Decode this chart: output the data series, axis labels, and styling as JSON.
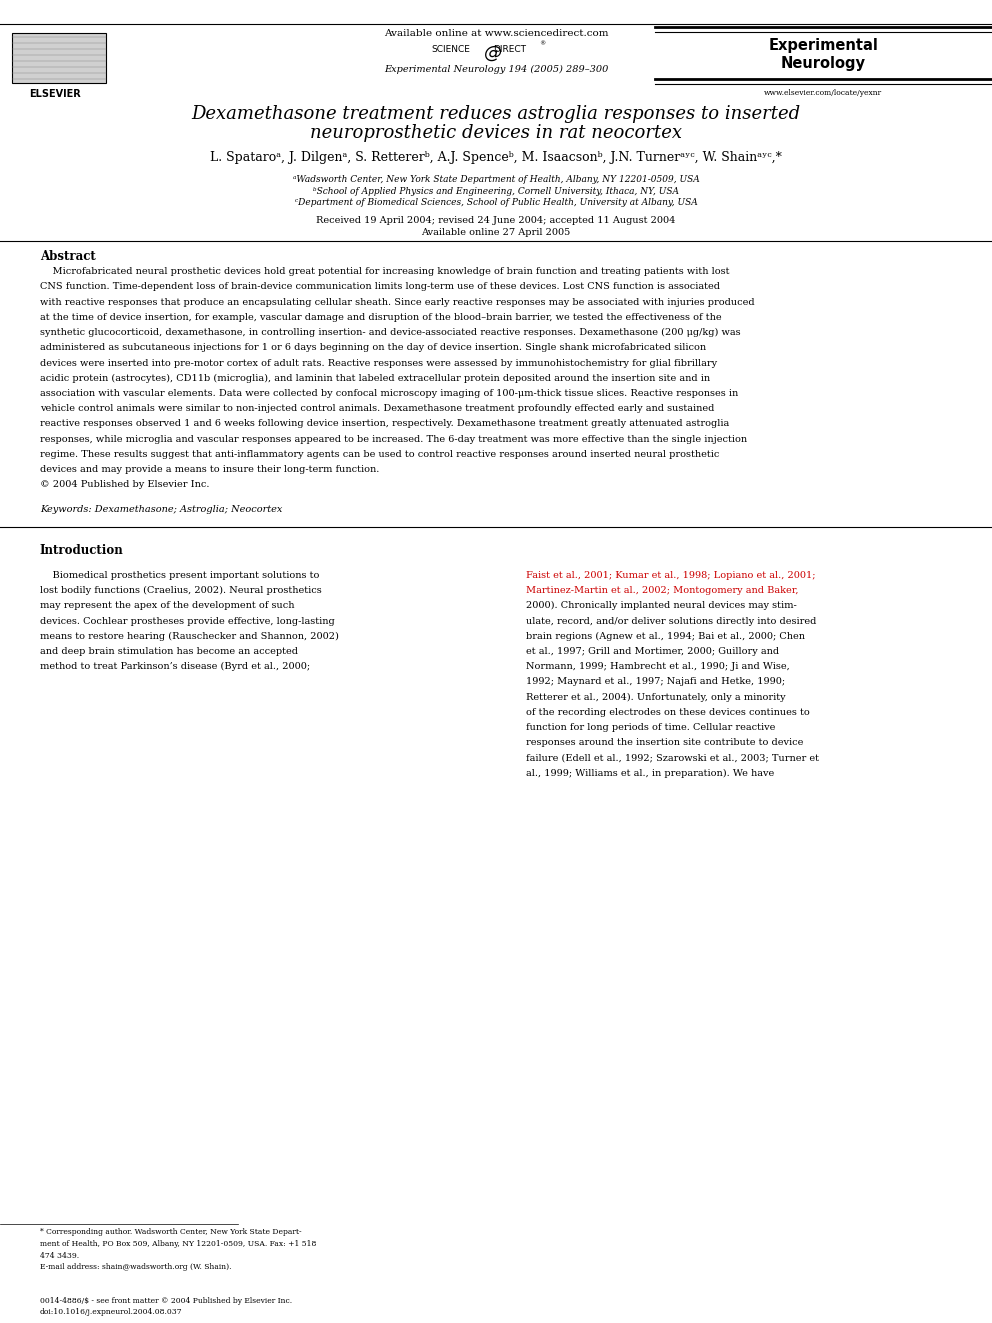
{
  "bg_color": "#ffffff",
  "header_line_color": "#000000",
  "elsevier_text": "ELSEVIER",
  "available_online": "Available online at www.sciencedirect.com",
  "journal_name_line1": "Experimental",
  "journal_name_line2": "Neurology",
  "journal_info": "Experimental Neurology 194 (2005) 289–300",
  "website": "www.elsevier.com/locate/yexnr",
  "title_line1": "Dexamethasone treatment reduces astroglia responses to inserted",
  "title_line2": "neuroprosthetic devices in rat neocortex",
  "authors": "L. Spataroᵃ, J. Dilgenᵃ, S. Rettererᵇ, A.J. Spenceᵇ, M. Isaacsonᵇ, J.N. Turnerᵃʸᶜ, W. Shainᵃʸᶜ,*",
  "affil1": "ᵃWadsworth Center, New York State Department of Health, Albany, NY 12201-0509, USA",
  "affil2": "ᵇSchool of Applied Physics and Engineering, Cornell University, Ithaca, NY, USA",
  "affil3": "ᶜDepartment of Biomedical Sciences, School of Public Health, University at Albany, USA",
  "dates": "Received 19 April 2004; revised 24 June 2004; accepted 11 August 2004",
  "available_date": "Available online 27 April 2005",
  "abstract_title": "Abstract",
  "keywords": "Keywords: Dexamethasone; Astroglia; Neocortex",
  "intro_title": "Introduction",
  "footnote_email": "E-mail address: shain@wadsworth.org (W. Shain).",
  "bottom_line1": "0014-4886/$ - see front matter © 2004 Published by Elsevier Inc.",
  "bottom_line2": "doi:10.1016/j.expneurol.2004.08.037",
  "abstract_lines": [
    "    Microfabricated neural prosthetic devices hold great potential for increasing knowledge of brain function and treating patients with lost",
    "CNS function. Time-dependent loss of brain-device communication limits long-term use of these devices. Lost CNS function is associated",
    "with reactive responses that produce an encapsulating cellular sheath. Since early reactive responses may be associated with injuries produced",
    "at the time of device insertion, for example, vascular damage and disruption of the blood–brain barrier, we tested the effectiveness of the",
    "synthetic glucocorticoid, dexamethasone, in controlling insertion- and device-associated reactive responses. Dexamethasone (200 μg/kg) was",
    "administered as subcutaneous injections for 1 or 6 days beginning on the day of device insertion. Single shank microfabricated silicon",
    "devices were inserted into pre-motor cortex of adult rats. Reactive responses were assessed by immunohistochemistry for glial fibrillary",
    "acidic protein (astrocytes), CD11b (microglia), and laminin that labeled extracellular protein deposited around the insertion site and in",
    "association with vascular elements. Data were collected by confocal microscopy imaging of 100-μm-thick tissue slices. Reactive responses in",
    "vehicle control animals were similar to non-injected control animals. Dexamethasone treatment profoundly effected early and sustained",
    "reactive responses observed 1 and 6 weeks following device insertion, respectively. Dexamethasone treatment greatly attenuated astroglia",
    "responses, while microglia and vascular responses appeared to be increased. The 6-day treatment was more effective than the single injection",
    "regime. These results suggest that anti-inflammatory agents can be used to control reactive responses around inserted neural prosthetic",
    "devices and may provide a means to insure their long-term function.",
    "© 2004 Published by Elsevier Inc."
  ],
  "left_intro_lines": [
    "    Biomedical prosthetics present important solutions to",
    "lost bodily functions (Craelius, 2002). Neural prosthetics",
    "may represent the apex of the development of such",
    "devices. Cochlear prostheses provide effective, long-lasting",
    "means to restore hearing (Rauschecker and Shannon, 2002)",
    "and deep brain stimulation has become an accepted",
    "method to treat Parkinson’s disease (Byrd et al., 2000;"
  ],
  "left_intro_colors": [
    "black",
    "black",
    "black",
    "black",
    "black",
    "black",
    "black"
  ],
  "right_intro_lines": [
    "Faist et al., 2001; Kumar et al., 1998; Lopiano et al., 2001;",
    "Martinez-Martin et al., 2002; Montogomery and Baker,",
    "2000). Chronically implanted neural devices may stim-",
    "ulate, record, and/or deliver solutions directly into desired",
    "brain regions (Agnew et al., 1994; Bai et al., 2000; Chen",
    "et al., 1997; Grill and Mortimer, 2000; Guillory and",
    "Normann, 1999; Hambrecht et al., 1990; Ji and Wise,",
    "1992; Maynard et al., 1997; Najafi and Hetke, 1990;",
    "Retterer et al., 2004). Unfortunately, only a minority",
    "of the recording electrodes on these devices continues to",
    "function for long periods of time. Cellular reactive",
    "responses around the insertion site contribute to device",
    "failure (Edell et al., 1992; Szarowski et al., 2003; Turner et",
    "al., 1999; Williams et al., in preparation). We have"
  ],
  "right_intro_colors": [
    "#cc0000",
    "#cc0000",
    "black",
    "black",
    "black",
    "black",
    "black",
    "black",
    "black",
    "black",
    "black",
    "black",
    "black",
    "black"
  ],
  "footnote_lines": [
    "* Corresponding author. Wadsworth Center, New York State Depart-",
    "ment of Health, PO Box 509, Albany, NY 12201-0509, USA. Fax: +1 518",
    "474 3439."
  ]
}
